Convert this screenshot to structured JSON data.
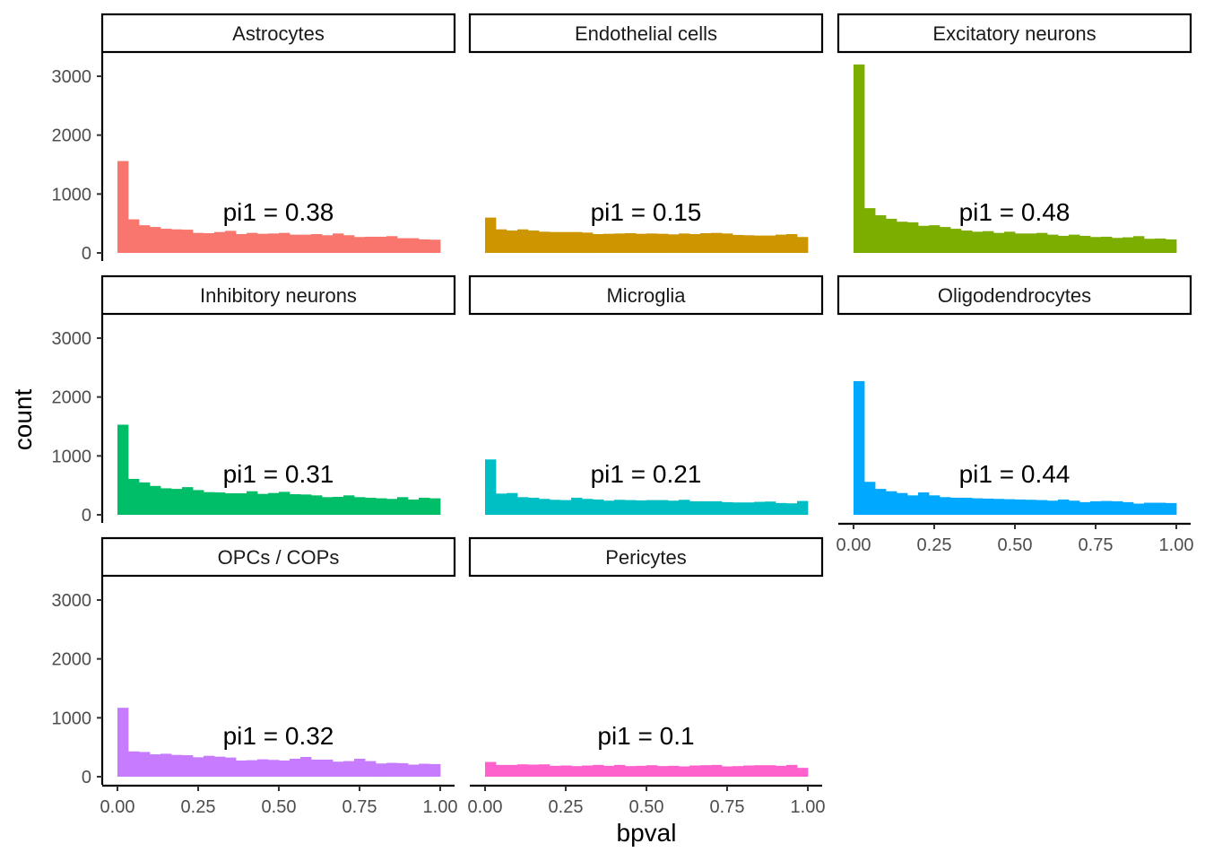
{
  "chart_data": {
    "type": "bar",
    "xlabel": "bpval",
    "ylabel": "count",
    "xlim": [
      0,
      1
    ],
    "ylim": [
      0,
      3300
    ],
    "x_ticks": [
      "0.00",
      "0.25",
      "0.50",
      "0.75",
      "1.00"
    ],
    "y_ticks": [
      "0",
      "1000",
      "2000",
      "3000"
    ],
    "bins": 30,
    "bin_width": 0.0333,
    "grid": false,
    "legend": "none",
    "panels": [
      {
        "name": "Astrocytes",
        "annotation": "pi1 = 0.38",
        "color": "#F8766D",
        "values": [
          1560,
          570,
          470,
          440,
          410,
          400,
          395,
          340,
          335,
          355,
          375,
          320,
          340,
          325,
          330,
          340,
          310,
          310,
          320,
          300,
          330,
          300,
          270,
          275,
          275,
          285,
          250,
          250,
          230,
          225
        ]
      },
      {
        "name": "Endothelial cells",
        "annotation": "pi1 = 0.15",
        "color": "#CD9600",
        "values": [
          600,
          400,
          380,
          400,
          380,
          360,
          355,
          355,
          355,
          345,
          320,
          325,
          330,
          335,
          325,
          330,
          325,
          315,
          330,
          320,
          335,
          340,
          330,
          305,
          300,
          295,
          295,
          310,
          320,
          270
        ]
      },
      {
        "name": "Excitatory neurons",
        "annotation": "pi1 = 0.48",
        "color": "#7CAE00",
        "values": [
          3200,
          760,
          640,
          580,
          530,
          520,
          460,
          470,
          440,
          410,
          380,
          360,
          370,
          340,
          360,
          330,
          330,
          340,
          310,
          290,
          310,
          290,
          270,
          275,
          255,
          265,
          285,
          240,
          245,
          230
        ]
      },
      {
        "name": "Inhibitory neurons",
        "annotation": "pi1 = 0.31",
        "color": "#00BE67",
        "values": [
          1530,
          610,
          550,
          490,
          450,
          440,
          470,
          420,
          385,
          380,
          365,
          365,
          400,
          355,
          370,
          390,
          350,
          345,
          330,
          300,
          305,
          330,
          300,
          290,
          280,
          270,
          300,
          260,
          290,
          280
        ]
      },
      {
        "name": "Microglia",
        "annotation": "pi1 = 0.21",
        "color": "#00BFC4",
        "values": [
          940,
          360,
          370,
          300,
          290,
          270,
          255,
          250,
          290,
          270,
          260,
          240,
          255,
          250,
          245,
          250,
          250,
          240,
          255,
          230,
          230,
          230,
          215,
          210,
          210,
          220,
          225,
          200,
          195,
          235
        ]
      },
      {
        "name": "Oligodendrocytes",
        "annotation": "pi1 = 0.44",
        "color": "#00A9FF",
        "values": [
          2270,
          560,
          440,
          400,
          370,
          330,
          380,
          330,
          300,
          290,
          290,
          280,
          275,
          270,
          265,
          260,
          255,
          250,
          240,
          260,
          240,
          215,
          230,
          235,
          230,
          215,
          190,
          205,
          205,
          200
        ]
      },
      {
        "name": "OPCs / COPs",
        "annotation": "pi1 = 0.32",
        "color": "#C77CFF",
        "values": [
          1170,
          430,
          420,
          380,
          390,
          370,
          365,
          330,
          355,
          340,
          325,
          275,
          280,
          295,
          285,
          275,
          305,
          335,
          290,
          290,
          255,
          265,
          305,
          265,
          225,
          235,
          230,
          205,
          220,
          215
        ]
      },
      {
        "name": "Pericytes",
        "annotation": "pi1 = 0.1",
        "color": "#FF61CC",
        "values": [
          250,
          200,
          200,
          210,
          205,
          210,
          185,
          190,
          180,
          190,
          200,
          185,
          200,
          180,
          185,
          195,
          180,
          185,
          175,
          190,
          195,
          200,
          175,
          180,
          190,
          195,
          195,
          185,
          200,
          150
        ]
      }
    ]
  }
}
